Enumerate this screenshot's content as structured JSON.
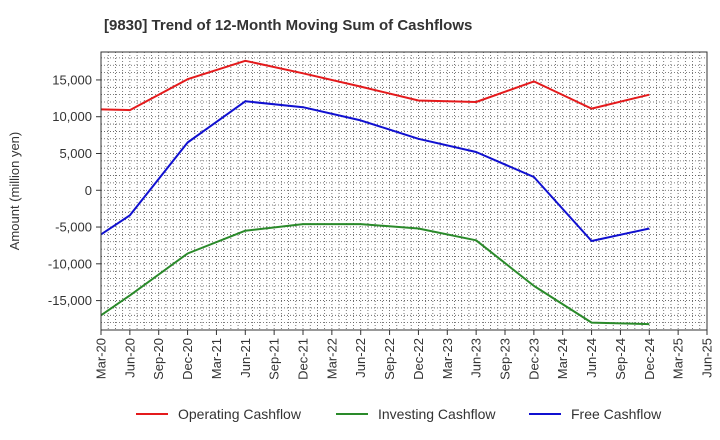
{
  "chart_data": {
    "type": "line",
    "title": "[9830]  Trend of 12-Month Moving Sum of Cashflows",
    "xlabel": "",
    "ylabel": "Amount (million yen)",
    "categories": [
      "Mar-20",
      "Jun-20",
      "Sep-20",
      "Dec-20",
      "Mar-21",
      "Jun-21",
      "Sep-21",
      "Dec-21",
      "Mar-22",
      "Jun-22",
      "Sep-22",
      "Dec-22",
      "Mar-23",
      "Jun-23",
      "Sep-23",
      "Dec-23",
      "Mar-24",
      "Jun-24",
      "Sep-24",
      "Dec-24",
      "Mar-25",
      "Jun-25"
    ],
    "ylim": [
      -19000,
      18800
    ],
    "yticks": [
      -15000,
      -10000,
      -5000,
      0,
      5000,
      10000,
      15000
    ],
    "ytick_labels": [
      "-15,000",
      "-10,000",
      "-5,000",
      "0",
      "5,000",
      "10,000",
      "15,000"
    ],
    "grid": true,
    "legend_position": "bottom",
    "series": [
      {
        "name": "Operating Cashflow",
        "color": "#e41a1c",
        "values": [
          11000,
          10900,
          null,
          15100,
          null,
          17600,
          null,
          15900,
          null,
          14100,
          null,
          12200,
          null,
          12000,
          null,
          14800,
          null,
          11100,
          null,
          13000,
          null,
          null
        ]
      },
      {
        "name": "Investing Cashflow",
        "color": "#2a8a2a",
        "values": [
          -17000,
          -14300,
          null,
          -8600,
          null,
          -5500,
          null,
          -4600,
          null,
          -4600,
          null,
          -5200,
          null,
          -6800,
          null,
          -13000,
          null,
          -18000,
          null,
          -18200,
          null,
          null
        ]
      },
      {
        "name": "Free Cashflow",
        "color": "#1010d0",
        "values": [
          -6000,
          -3400,
          null,
          6500,
          null,
          12100,
          null,
          11300,
          null,
          9500,
          null,
          7000,
          null,
          5200,
          null,
          1800,
          null,
          -6900,
          null,
          -5200,
          null,
          null
        ]
      }
    ]
  }
}
